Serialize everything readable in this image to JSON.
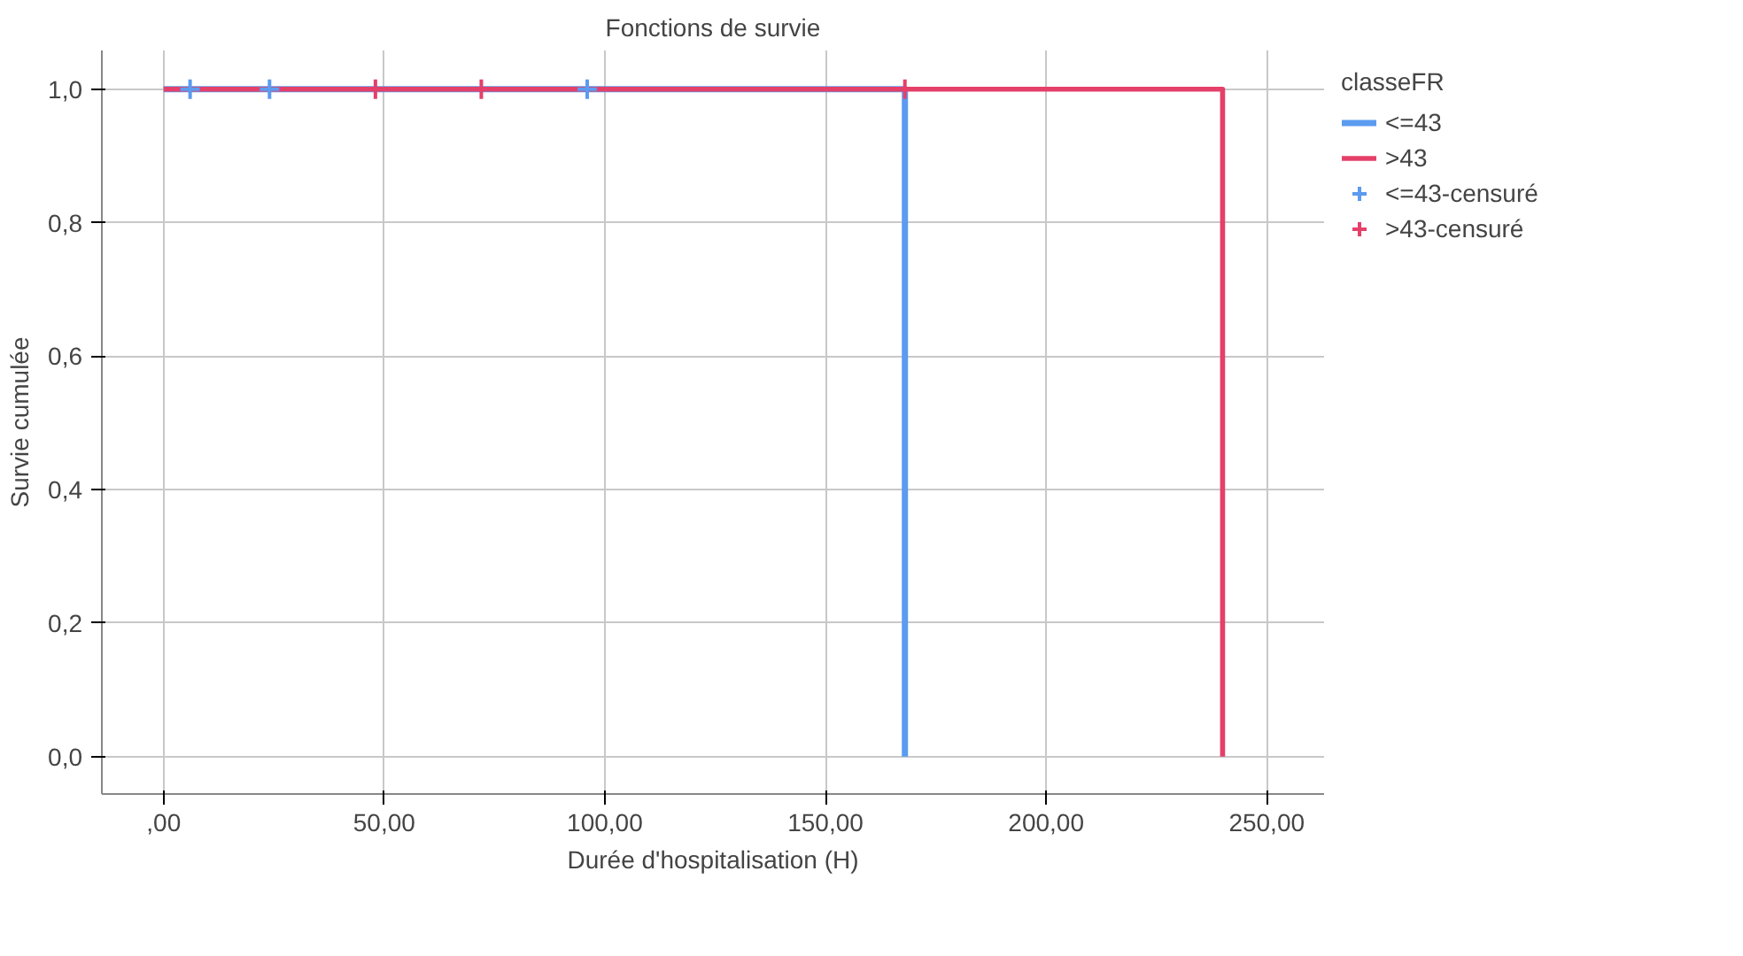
{
  "chart_data": {
    "type": "step",
    "title": "Fonctions de survie",
    "xlabel": "Durée d'hospitalisation (H)",
    "ylabel": "Survie cumulée",
    "legend_title": "classeFR",
    "series": [
      {
        "name": "<=43",
        "color": "#5b9bf0",
        "x": [
          0,
          168
        ],
        "values": [
          1,
          0
        ]
      },
      {
        "name": ">43",
        "color": "#e4406a",
        "x": [
          0,
          240
        ],
        "values": [
          1,
          0
        ]
      },
      {
        "name": "<=43-censuré",
        "type": "scatter",
        "marker": "cross",
        "color": "#5b9bf0",
        "x": [
          6,
          24,
          96
        ],
        "values": [
          1,
          1,
          1
        ]
      },
      {
        "name": ">43-censuré",
        "type": "scatter",
        "marker": "cross",
        "color": "#e4406a",
        "x": [
          48,
          72,
          168
        ],
        "values": [
          1,
          1,
          1
        ]
      }
    ],
    "xlim": [
      -14,
      263
    ],
    "ylim": [
      -0.056,
      1.058
    ],
    "xticks": [
      {
        "value": 0,
        "label": ",00"
      },
      {
        "value": 50,
        "label": "50,00"
      },
      {
        "value": 100,
        "label": "100,00"
      },
      {
        "value": 150,
        "label": "150,00"
      },
      {
        "value": 200,
        "label": "200,00"
      },
      {
        "value": 250,
        "label": "250,00"
      }
    ],
    "yticks": [
      {
        "value": 0,
        "label": "0,0"
      },
      {
        "value": 0.2,
        "label": "0,2"
      },
      {
        "value": 0.4,
        "label": "0,4"
      },
      {
        "value": 0.6,
        "label": "0,6"
      },
      {
        "value": 0.8,
        "label": "0,8"
      },
      {
        "value": 1,
        "label": "1,0"
      }
    ],
    "grid": true,
    "legend": "top right"
  }
}
